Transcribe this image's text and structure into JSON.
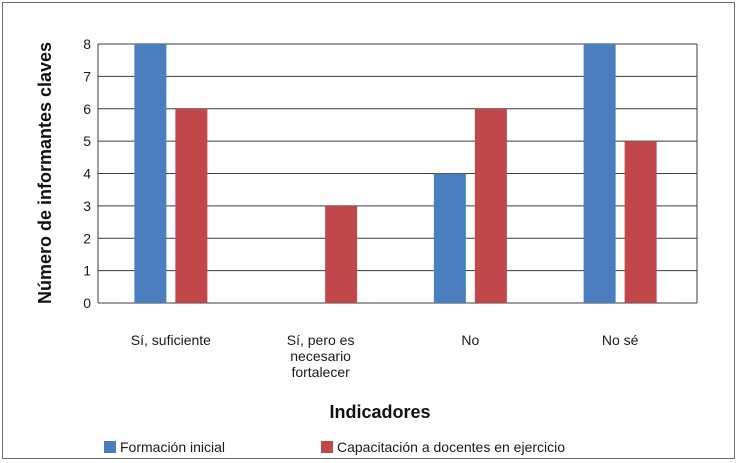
{
  "chart_data": {
    "type": "bar",
    "title": "",
    "xlabel": "Indicadores",
    "ylabel": "Número de informantes claves",
    "ylim": [
      0,
      8
    ],
    "yticks": [
      0,
      1,
      2,
      3,
      4,
      5,
      6,
      7,
      8
    ],
    "grid": true,
    "legend_position": "bottom",
    "categories": [
      [
        "Sí, suficiente"
      ],
      [
        "Sí, pero es",
        "necesario",
        "fortalecer"
      ],
      [
        "No"
      ],
      [
        "No sé"
      ]
    ],
    "series": [
      {
        "name": "Formación inicial",
        "color": "#4a7ebf",
        "values": [
          8,
          0,
          4,
          8
        ]
      },
      {
        "name": "Capacitación a docentes en ejercicio",
        "color": "#c0474a",
        "values": [
          6,
          3,
          6,
          5
        ]
      }
    ]
  }
}
